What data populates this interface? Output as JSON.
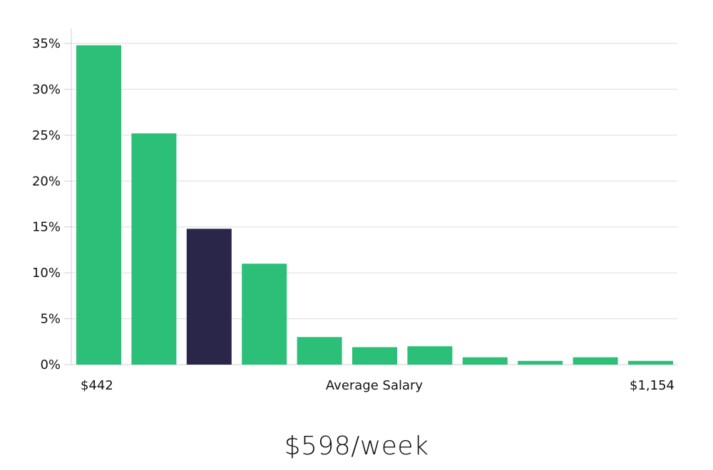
{
  "chart_data": {
    "type": "bar",
    "title": "",
    "xlabel": "Average Salary",
    "ylabel": "",
    "x_range_labels": [
      "$442",
      "$1,154"
    ],
    "yticks": [
      "0%",
      "5%",
      "10%",
      "15%",
      "20%",
      "25%",
      "30%",
      "35%"
    ],
    "ylim": [
      0,
      35
    ],
    "values": [
      34.8,
      25.2,
      14.8,
      11.0,
      3.0,
      1.9,
      2.0,
      0.8,
      0.4,
      0.8,
      0.4
    ],
    "highlight_index": 2,
    "grid": true,
    "bar_color": "#2bbf77",
    "highlight_color": "#29264a",
    "grid_color": "#dcdcdc",
    "axis_color": "#cfcfcf"
  },
  "caption": {
    "salary": "$598/week"
  }
}
